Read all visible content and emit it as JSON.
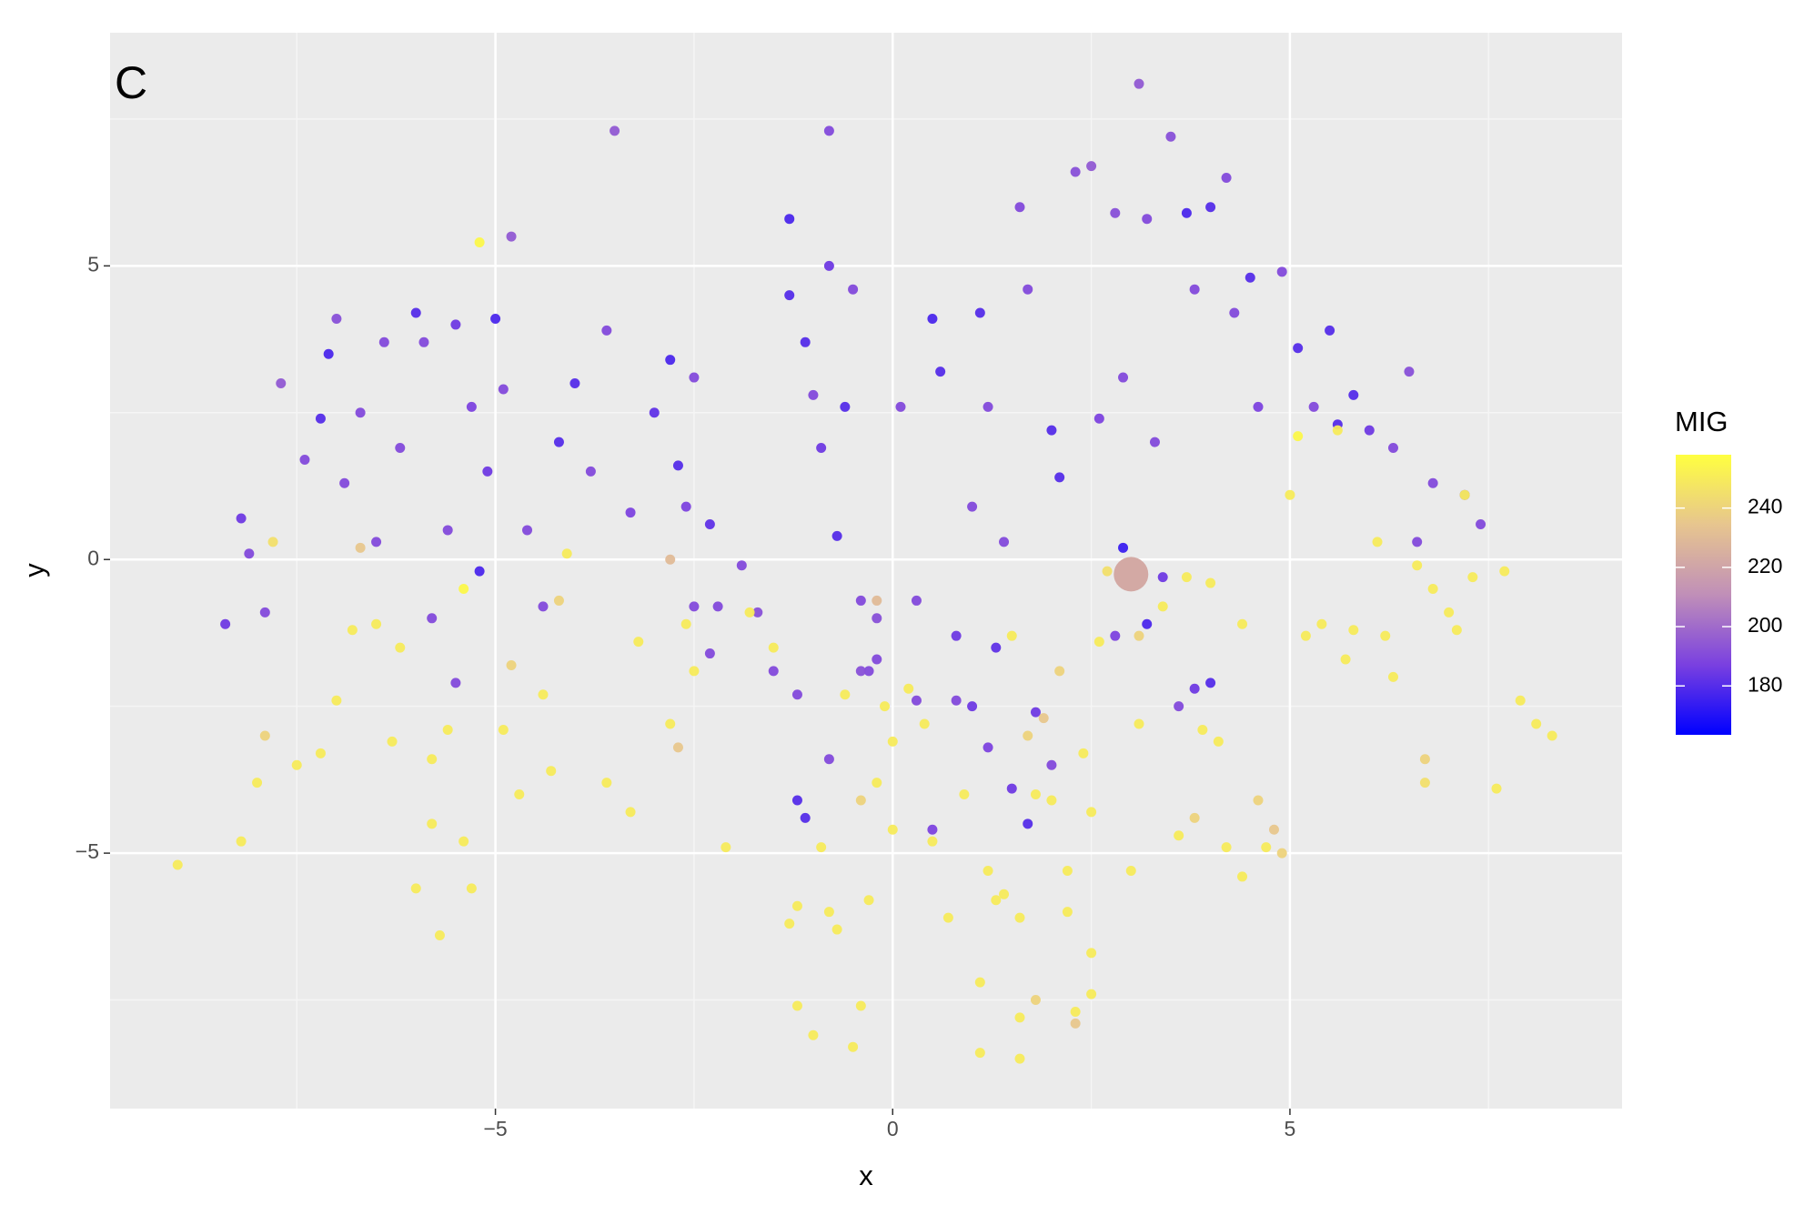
{
  "chart_data": {
    "type": "scatter",
    "panel_label": "C",
    "x_label": "x",
    "y_label": "y",
    "xlim": [
      -9.85,
      9.18
    ],
    "ylim": [
      -9.35,
      8.97
    ],
    "xticks": [
      {
        "value": -5,
        "label": "−5"
      },
      0,
      5
    ],
    "yticks": [
      {
        "value": -5,
        "label": "−5"
      },
      0,
      5
    ],
    "minor_xticks": [
      -7.5,
      -2.5,
      2.5,
      7.5
    ],
    "minor_yticks": [
      -7.5,
      -2.5,
      2.5,
      7.5
    ],
    "grid": true,
    "colorbar": {
      "title": "MIG",
      "lim": [
        163.5,
        258
      ],
      "ticks": [
        180,
        200,
        220,
        240
      ],
      "colors": [
        "#0000ff",
        "#7a40e0",
        "#c08fb8",
        "#e7c58f",
        "#ffff40"
      ]
    },
    "highlight": [
      3.0,
      -0.25,
      222
    ],
    "points": [
      [
        -8.4,
        -1.1,
        185
      ],
      [
        -8.2,
        0.7,
        185
      ],
      [
        -8.1,
        0.1,
        190
      ],
      [
        -7.9,
        -0.9,
        190
      ],
      [
        -7.7,
        3.0,
        195
      ],
      [
        -7.4,
        1.7,
        190
      ],
      [
        -7.2,
        2.4,
        180
      ],
      [
        -7.1,
        3.5,
        178
      ],
      [
        -7.0,
        4.1,
        192
      ],
      [
        -6.9,
        1.3,
        190
      ],
      [
        -6.7,
        2.5,
        190
      ],
      [
        -6.5,
        0.3,
        190
      ],
      [
        -6.4,
        3.7,
        190
      ],
      [
        -6.2,
        1.9,
        190
      ],
      [
        -6.0,
        4.2,
        180
      ],
      [
        -5.9,
        3.7,
        190
      ],
      [
        -5.6,
        0.5,
        190
      ],
      [
        -5.5,
        4.0,
        185
      ],
      [
        -5.3,
        2.6,
        188
      ],
      [
        -5.2,
        -0.2,
        178
      ],
      [
        -5.1,
        1.5,
        185
      ],
      [
        -5.0,
        4.1,
        178
      ],
      [
        -4.9,
        2.9,
        190
      ],
      [
        -4.8,
        5.5,
        195
      ],
      [
        -4.6,
        0.5,
        190
      ],
      [
        -4.4,
        -0.8,
        190
      ],
      [
        -4.2,
        2.0,
        180
      ],
      [
        -4.0,
        3.0,
        180
      ],
      [
        -3.8,
        1.5,
        190
      ],
      [
        -3.5,
        7.3,
        195
      ],
      [
        -3.6,
        3.9,
        190
      ],
      [
        -3.3,
        0.8,
        188
      ],
      [
        -3.0,
        2.5,
        182
      ],
      [
        -2.8,
        3.4,
        178
      ],
      [
        -2.7,
        1.6,
        180
      ],
      [
        -2.6,
        0.9,
        188
      ],
      [
        -2.5,
        3.1,
        190
      ],
      [
        -2.3,
        0.6,
        182
      ],
      [
        -2.2,
        -0.8,
        190
      ],
      [
        -1.9,
        -0.1,
        190
      ],
      [
        -1.7,
        -0.9,
        192
      ],
      [
        -1.5,
        -1.9,
        190
      ],
      [
        -1.3,
        5.8,
        178
      ],
      [
        -1.3,
        4.5,
        180
      ],
      [
        -1.1,
        3.7,
        180
      ],
      [
        -1.0,
        2.8,
        190
      ],
      [
        -0.9,
        1.9,
        185
      ],
      [
        -0.8,
        7.3,
        190
      ],
      [
        -0.8,
        5.0,
        185
      ],
      [
        -0.7,
        0.4,
        180
      ],
      [
        -0.6,
        2.6,
        180
      ],
      [
        -0.5,
        4.6,
        190
      ],
      [
        -0.4,
        -0.7,
        190
      ],
      [
        -0.3,
        -1.9,
        190
      ],
      [
        -0.2,
        -1.0,
        192
      ],
      [
        0.1,
        2.6,
        190
      ],
      [
        0.3,
        -0.7,
        190
      ],
      [
        0.5,
        4.1,
        178
      ],
      [
        0.6,
        3.2,
        180
      ],
      [
        0.8,
        -1.3,
        185
      ],
      [
        1.0,
        0.9,
        190
      ],
      [
        1.1,
        4.2,
        180
      ],
      [
        1.2,
        2.6,
        190
      ],
      [
        1.3,
        -1.5,
        182
      ],
      [
        1.4,
        0.3,
        190
      ],
      [
        1.6,
        6.0,
        190
      ],
      [
        1.7,
        4.6,
        190
      ],
      [
        1.8,
        -2.6,
        185
      ],
      [
        2.0,
        2.2,
        180
      ],
      [
        2.1,
        1.4,
        180
      ],
      [
        2.3,
        6.6,
        192
      ],
      [
        2.5,
        6.7,
        195
      ],
      [
        2.6,
        2.4,
        188
      ],
      [
        2.8,
        5.9,
        192
      ],
      [
        2.9,
        3.1,
        190
      ],
      [
        3.1,
        8.1,
        195
      ],
      [
        3.2,
        5.8,
        190
      ],
      [
        3.3,
        2.0,
        190
      ],
      [
        3.4,
        -0.3,
        185
      ],
      [
        3.5,
        7.2,
        192
      ],
      [
        3.7,
        5.9,
        178
      ],
      [
        3.8,
        4.6,
        190
      ],
      [
        4.0,
        6.0,
        180
      ],
      [
        4.2,
        6.5,
        190
      ],
      [
        4.3,
        4.2,
        190
      ],
      [
        4.5,
        4.8,
        180
      ],
      [
        4.6,
        2.6,
        188
      ],
      [
        4.9,
        4.9,
        190
      ],
      [
        5.1,
        3.6,
        180
      ],
      [
        5.3,
        2.6,
        190
      ],
      [
        5.5,
        3.9,
        180
      ],
      [
        5.6,
        2.3,
        180
      ],
      [
        5.8,
        2.8,
        180
      ],
      [
        6.0,
        2.2,
        185
      ],
      [
        6.3,
        1.9,
        190
      ],
      [
        6.5,
        3.2,
        192
      ],
      [
        6.6,
        0.3,
        190
      ],
      [
        6.8,
        1.3,
        190
      ],
      [
        7.2,
        1.1,
        190
      ],
      [
        7.4,
        0.6,
        190
      ],
      [
        3.2,
        -1.1,
        178
      ],
      [
        3.8,
        -2.2,
        185
      ],
      [
        4.0,
        -2.1,
        180
      ],
      [
        2.9,
        0.2,
        175
      ],
      [
        2.8,
        -1.3,
        188
      ],
      [
        3.6,
        -2.5,
        190
      ],
      [
        1.0,
        -2.5,
        185
      ],
      [
        1.5,
        -3.9,
        185
      ],
      [
        1.7,
        -4.5,
        180
      ],
      [
        1.2,
        -3.2,
        188
      ],
      [
        0.5,
        -4.6,
        188
      ],
      [
        -1.2,
        -4.1,
        180
      ],
      [
        -1.1,
        -4.4,
        180
      ],
      [
        -0.8,
        -3.4,
        190
      ],
      [
        -0.4,
        -1.9,
        192
      ],
      [
        -1.2,
        -2.3,
        190
      ],
      [
        0.8,
        -2.4,
        190
      ],
      [
        0.3,
        -2.4,
        190
      ],
      [
        2.0,
        -3.5,
        190
      ],
      [
        -5.5,
        -2.1,
        190
      ],
      [
        -5.8,
        -1.0,
        190
      ],
      [
        -2.3,
        -1.6,
        190
      ],
      [
        -2.5,
        -0.8,
        190
      ],
      [
        -0.2,
        -1.7,
        190
      ],
      [
        -9.0,
        -5.2,
        250
      ],
      [
        -8.2,
        -4.8,
        250
      ],
      [
        -8.0,
        -3.8,
        250
      ],
      [
        -7.9,
        -3.0,
        240
      ],
      [
        -7.8,
        0.3,
        245
      ],
      [
        -7.5,
        -3.5,
        250
      ],
      [
        -7.2,
        -3.3,
        250
      ],
      [
        -7.0,
        -2.4,
        250
      ],
      [
        -6.8,
        -1.2,
        250
      ],
      [
        -6.7,
        0.2,
        235
      ],
      [
        -6.5,
        -1.1,
        250
      ],
      [
        -6.3,
        -3.1,
        250
      ],
      [
        -6.2,
        -1.5,
        250
      ],
      [
        -5.8,
        -3.4,
        250
      ],
      [
        -6.0,
        -5.6,
        250
      ],
      [
        -5.8,
        -4.5,
        250
      ],
      [
        -5.7,
        -6.4,
        250
      ],
      [
        -5.6,
        -2.9,
        250
      ],
      [
        -5.4,
        -4.8,
        250
      ],
      [
        -5.3,
        -5.6,
        250
      ],
      [
        -5.4,
        -0.5,
        255
      ],
      [
        -5.2,
        5.4,
        255
      ],
      [
        -4.9,
        -2.9,
        250
      ],
      [
        -4.7,
        -4.0,
        250
      ],
      [
        -4.8,
        -1.8,
        240
      ],
      [
        -4.4,
        -2.3,
        250
      ],
      [
        -4.3,
        -3.6,
        250
      ],
      [
        -4.2,
        -0.7,
        240
      ],
      [
        -4.1,
        0.1,
        250
      ],
      [
        -3.6,
        -3.8,
        250
      ],
      [
        -3.3,
        -4.3,
        250
      ],
      [
        -3.2,
        -1.4,
        250
      ],
      [
        -2.8,
        -2.8,
        250
      ],
      [
        -2.7,
        -3.2,
        235
      ],
      [
        -2.6,
        -1.1,
        250
      ],
      [
        -2.5,
        -1.9,
        250
      ],
      [
        -2.1,
        -4.9,
        250
      ],
      [
        -2.8,
        0.0,
        230
      ],
      [
        -1.8,
        -0.9,
        250
      ],
      [
        -1.3,
        -6.2,
        250
      ],
      [
        -1.2,
        -5.9,
        250
      ],
      [
        -1.2,
        -7.6,
        250
      ],
      [
        -1.0,
        -8.1,
        250
      ],
      [
        -0.9,
        -4.9,
        250
      ],
      [
        -0.8,
        -6.0,
        250
      ],
      [
        -0.7,
        -6.3,
        250
      ],
      [
        -0.5,
        -8.3,
        250
      ],
      [
        -0.4,
        -7.6,
        250
      ],
      [
        -0.4,
        -4.1,
        240
      ],
      [
        -0.3,
        -5.8,
        250
      ],
      [
        -0.2,
        -3.8,
        250
      ],
      [
        -0.1,
        -2.5,
        250
      ],
      [
        -0.2,
        -0.7,
        230
      ],
      [
        0.0,
        -4.6,
        250
      ],
      [
        0.0,
        -3.1,
        250
      ],
      [
        0.2,
        -2.2,
        250
      ],
      [
        0.4,
        -2.8,
        250
      ],
      [
        0.5,
        -4.8,
        250
      ],
      [
        0.7,
        -6.1,
        250
      ],
      [
        0.9,
        -4.0,
        250
      ],
      [
        1.1,
        -7.2,
        250
      ],
      [
        1.1,
        -8.4,
        250
      ],
      [
        1.2,
        -5.3,
        250
      ],
      [
        1.3,
        -5.8,
        250
      ],
      [
        1.4,
        -5.7,
        250
      ],
      [
        1.6,
        -6.1,
        250
      ],
      [
        1.6,
        -7.8,
        250
      ],
      [
        1.6,
        -8.5,
        250
      ],
      [
        1.8,
        -4.0,
        250
      ],
      [
        1.8,
        -7.5,
        240
      ],
      [
        1.9,
        -2.7,
        235
      ],
      [
        2.0,
        -4.1,
        250
      ],
      [
        2.1,
        -1.9,
        240
      ],
      [
        2.2,
        -5.3,
        250
      ],
      [
        2.2,
        -6.0,
        250
      ],
      [
        2.3,
        -7.7,
        250
      ],
      [
        2.3,
        -7.9,
        235
      ],
      [
        2.4,
        -3.3,
        250
      ],
      [
        2.5,
        -7.4,
        250
      ],
      [
        2.5,
        -6.7,
        250
      ],
      [
        2.5,
        -4.3,
        250
      ],
      [
        2.6,
        -1.4,
        250
      ],
      [
        2.7,
        -0.2,
        245
      ],
      [
        3.0,
        -5.3,
        250
      ],
      [
        3.1,
        -2.8,
        250
      ],
      [
        3.1,
        -1.3,
        240
      ],
      [
        3.4,
        -0.8,
        250
      ],
      [
        3.6,
        -4.7,
        250
      ],
      [
        3.7,
        -0.3,
        250
      ],
      [
        3.8,
        -4.4,
        240
      ],
      [
        3.9,
        -2.9,
        250
      ],
      [
        4.0,
        -0.4,
        250
      ],
      [
        4.1,
        -3.1,
        250
      ],
      [
        4.2,
        -4.9,
        250
      ],
      [
        4.4,
        -1.1,
        250
      ],
      [
        4.4,
        -5.4,
        250
      ],
      [
        4.6,
        -4.1,
        240
      ],
      [
        4.7,
        -4.9,
        250
      ],
      [
        4.8,
        -4.6,
        235
      ],
      [
        4.9,
        -5.0,
        240
      ],
      [
        5.0,
        1.1,
        250
      ],
      [
        5.1,
        2.1,
        255
      ],
      [
        5.2,
        -1.3,
        250
      ],
      [
        5.4,
        -1.1,
        250
      ],
      [
        5.6,
        2.2,
        250
      ],
      [
        5.7,
        -1.7,
        250
      ],
      [
        5.8,
        -1.2,
        250
      ],
      [
        6.1,
        0.3,
        250
      ],
      [
        6.2,
        -1.3,
        250
      ],
      [
        6.3,
        -2.0,
        250
      ],
      [
        6.6,
        -0.1,
        250
      ],
      [
        6.7,
        -3.4,
        240
      ],
      [
        6.7,
        -3.8,
        245
      ],
      [
        6.8,
        -0.5,
        250
      ],
      [
        7.0,
        -0.9,
        250
      ],
      [
        7.1,
        -1.2,
        250
      ],
      [
        7.2,
        1.1,
        250
      ],
      [
        7.3,
        -0.3,
        250
      ],
      [
        7.6,
        -3.9,
        250
      ],
      [
        7.7,
        -0.2,
        250
      ],
      [
        7.9,
        -2.4,
        250
      ],
      [
        8.1,
        -2.8,
        250
      ],
      [
        8.3,
        -3.0,
        250
      ],
      [
        -0.6,
        -2.3,
        250
      ],
      [
        -1.5,
        -1.5,
        250
      ],
      [
        1.5,
        -1.3,
        250
      ],
      [
        1.7,
        -3.0,
        240
      ]
    ]
  }
}
